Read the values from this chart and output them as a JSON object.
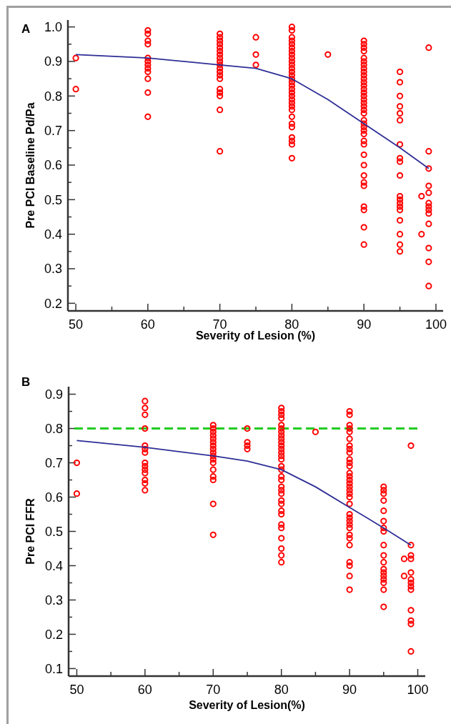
{
  "chart_data": [
    {
      "type": "scatter",
      "title": "A",
      "xlabel": "Severity of Lesion (%)",
      "ylabel": "Pre PCI Baseline Pd/Pa",
      "xlim": [
        48.9,
        101
      ],
      "ylim": [
        0.178,
        1.02
      ],
      "xticks": [
        50,
        {
          "value": 55,
          "label": null
        },
        60,
        {
          "value": 65,
          "label": null
        },
        70,
        {
          "value": 75,
          "label": null
        },
        80,
        {
          "value": 85,
          "label": null
        },
        90,
        {
          "value": 95,
          "label": null
        },
        100
      ],
      "yticks": [
        0.2,
        {
          "value": 0.25,
          "label": null
        },
        0.3,
        {
          "value": 0.35,
          "label": null
        },
        0.4,
        {
          "value": 0.45,
          "label": null
        },
        0.5,
        {
          "value": 0.55,
          "label": null
        },
        0.6,
        {
          "value": 0.65,
          "label": null
        },
        0.7,
        {
          "value": 0.75,
          "label": null
        },
        0.8,
        {
          "value": 0.85,
          "label": null
        },
        0.9,
        {
          "value": 0.95,
          "label": null
        },
        {
          "value": 1,
          "label": "1.0"
        }
      ],
      "grid": false,
      "series": [
        {
          "type": "scatter",
          "marker": "circle",
          "color": "#ff0000",
          "x": [
            50,
            50,
            60,
            60,
            60,
            60,
            60,
            60,
            60,
            60,
            60,
            60,
            60,
            60,
            70,
            70,
            70,
            70,
            70,
            70,
            70,
            70,
            70,
            70,
            70,
            70,
            70,
            70,
            70,
            70,
            70,
            70,
            70,
            75,
            75,
            75,
            80,
            80,
            80,
            80,
            80,
            80,
            80,
            80,
            80,
            80,
            80,
            80,
            80,
            80,
            80,
            80,
            80,
            80,
            80,
            80,
            80,
            80,
            80,
            80,
            80,
            80,
            80,
            80,
            80,
            80,
            80,
            85,
            90,
            90,
            90,
            90,
            90,
            90,
            90,
            90,
            90,
            90,
            90,
            90,
            90,
            90,
            90,
            90,
            90,
            90,
            90,
            90,
            90,
            90,
            90,
            90,
            90,
            90,
            90,
            90,
            90,
            90,
            90,
            90,
            90,
            90,
            90,
            90,
            90,
            95,
            95,
            95,
            95,
            95,
            95,
            95,
            95,
            95,
            95,
            95,
            95,
            95,
            95,
            95,
            95,
            95,
            95,
            95,
            98,
            98,
            99,
            99,
            99,
            99,
            99,
            99,
            99,
            99,
            99,
            99,
            99,
            99,
            99
          ],
          "values": [
            0.91,
            0.82,
            0.99,
            0.98,
            0.96,
            0.95,
            0.91,
            0.9,
            0.89,
            0.88,
            0.87,
            0.85,
            0.81,
            0.74,
            0.98,
            0.97,
            0.96,
            0.95,
            0.94,
            0.93,
            0.92,
            0.91,
            0.9,
            0.89,
            0.88,
            0.87,
            0.86,
            0.85,
            0.82,
            0.81,
            0.8,
            0.76,
            0.64,
            0.97,
            0.92,
            0.89,
            1.0,
            0.99,
            0.97,
            0.96,
            0.95,
            0.94,
            0.93,
            0.92,
            0.91,
            0.9,
            0.89,
            0.88,
            0.87,
            0.86,
            0.85,
            0.84,
            0.83,
            0.82,
            0.81,
            0.8,
            0.79,
            0.78,
            0.77,
            0.76,
            0.74,
            0.72,
            0.71,
            0.68,
            0.67,
            0.66,
            0.62,
            0.92,
            0.96,
            0.95,
            0.94,
            0.93,
            0.91,
            0.9,
            0.89,
            0.88,
            0.87,
            0.86,
            0.85,
            0.84,
            0.83,
            0.82,
            0.81,
            0.8,
            0.79,
            0.78,
            0.77,
            0.76,
            0.75,
            0.73,
            0.72,
            0.71,
            0.7,
            0.69,
            0.67,
            0.66,
            0.63,
            0.6,
            0.57,
            0.55,
            0.54,
            0.48,
            0.47,
            0.42,
            0.37,
            0.87,
            0.84,
            0.8,
            0.77,
            0.75,
            0.73,
            0.66,
            0.62,
            0.61,
            0.57,
            0.51,
            0.5,
            0.49,
            0.48,
            0.47,
            0.44,
            0.4,
            0.37,
            0.35,
            0.51,
            0.4,
            0.94,
            0.64,
            0.59,
            0.54,
            0.52,
            0.49,
            0.48,
            0.47,
            0.46,
            0.43,
            0.36,
            0.32,
            0.25
          ]
        },
        {
          "type": "line",
          "color": "#2e2e96",
          "line_style": "solid",
          "x": [
            50,
            60,
            70,
            75,
            80,
            85,
            90,
            95,
            99
          ],
          "values": [
            0.92,
            0.91,
            0.89,
            0.88,
            0.85,
            0.79,
            0.72,
            0.65,
            0.59
          ]
        }
      ]
    },
    {
      "type": "scatter",
      "title": "B",
      "xlabel": "Severity of Lesion(%)",
      "ylabel": "Pre PCI FFR",
      "xlim": [
        48.8,
        101.1
      ],
      "ylim": [
        0.078,
        0.922
      ],
      "xticks": [
        50,
        {
          "value": 55,
          "label": null
        },
        60,
        {
          "value": 65,
          "label": null
        },
        70,
        {
          "value": 75,
          "label": null
        },
        80,
        {
          "value": 85,
          "label": null
        },
        90,
        {
          "value": 95,
          "label": null
        },
        100
      ],
      "yticks": [
        0.1,
        {
          "value": 0.15,
          "label": null
        },
        0.2,
        {
          "value": 0.25,
          "label": null
        },
        0.3,
        {
          "value": 0.35,
          "label": null
        },
        0.4,
        {
          "value": 0.45,
          "label": null
        },
        0.5,
        {
          "value": 0.55,
          "label": null
        },
        0.6,
        {
          "value": 0.65,
          "label": null
        },
        0.7,
        {
          "value": 0.75,
          "label": null
        },
        0.8,
        {
          "value": 0.85,
          "label": null
        },
        0.9
      ],
      "grid": false,
      "ref_lines": [
        {
          "axis": "y",
          "value": 0.8,
          "label": null,
          "color": "#22cc22",
          "line_style": "dashed"
        }
      ],
      "series": [
        {
          "type": "scatter",
          "marker": "circle",
          "color": "#ff0000",
          "x": [
            50,
            50,
            60,
            60,
            60,
            60,
            60,
            60,
            60,
            60,
            60,
            60,
            60,
            60,
            60,
            60,
            70,
            70,
            70,
            70,
            70,
            70,
            70,
            70,
            70,
            70,
            70,
            70,
            70,
            70,
            70,
            70,
            70,
            75,
            75,
            75,
            75,
            80,
            80,
            80,
            80,
            80,
            80,
            80,
            80,
            80,
            80,
            80,
            80,
            80,
            80,
            80,
            80,
            80,
            80,
            80,
            80,
            80,
            80,
            80,
            80,
            80,
            80,
            80,
            80,
            80,
            80,
            80,
            80,
            85,
            90,
            90,
            90,
            90,
            90,
            90,
            90,
            90,
            90,
            90,
            90,
            90,
            90,
            90,
            90,
            90,
            90,
            90,
            90,
            90,
            90,
            90,
            90,
            90,
            90,
            90,
            90,
            90,
            90,
            90,
            90,
            90,
            90,
            95,
            95,
            95,
            95,
            95,
            95,
            95,
            95,
            95,
            95,
            95,
            95,
            95,
            95,
            95,
            95,
            95,
            95,
            98,
            98,
            99,
            99,
            99,
            99,
            99,
            99,
            99,
            99,
            99,
            99,
            99,
            99,
            99
          ],
          "values": [
            0.7,
            0.61,
            0.88,
            0.86,
            0.84,
            0.8,
            0.75,
            0.74,
            0.73,
            0.7,
            0.69,
            0.68,
            0.67,
            0.65,
            0.64,
            0.62,
            0.81,
            0.8,
            0.79,
            0.78,
            0.77,
            0.76,
            0.75,
            0.74,
            0.73,
            0.72,
            0.71,
            0.7,
            0.68,
            0.66,
            0.65,
            0.58,
            0.49,
            0.8,
            0.76,
            0.75,
            0.74,
            0.86,
            0.85,
            0.84,
            0.83,
            0.81,
            0.8,
            0.79,
            0.78,
            0.77,
            0.76,
            0.75,
            0.74,
            0.73,
            0.72,
            0.71,
            0.69,
            0.68,
            0.66,
            0.65,
            0.63,
            0.62,
            0.61,
            0.59,
            0.58,
            0.56,
            0.55,
            0.52,
            0.51,
            0.48,
            0.45,
            0.43,
            0.41,
            0.79,
            0.85,
            0.84,
            0.81,
            0.8,
            0.79,
            0.77,
            0.75,
            0.74,
            0.73,
            0.71,
            0.7,
            0.69,
            0.67,
            0.66,
            0.65,
            0.64,
            0.63,
            0.62,
            0.61,
            0.6,
            0.58,
            0.55,
            0.54,
            0.53,
            0.52,
            0.51,
            0.49,
            0.48,
            0.46,
            0.41,
            0.4,
            0.37,
            0.33,
            0.63,
            0.62,
            0.61,
            0.59,
            0.56,
            0.53,
            0.51,
            0.5,
            0.46,
            0.43,
            0.41,
            0.39,
            0.38,
            0.37,
            0.36,
            0.35,
            0.33,
            0.28,
            0.42,
            0.37,
            0.75,
            0.46,
            0.43,
            0.42,
            0.38,
            0.36,
            0.35,
            0.34,
            0.33,
            0.27,
            0.24,
            0.23,
            0.15
          ]
        },
        {
          "type": "line",
          "color": "#2e2e96",
          "line_style": "solid",
          "x": [
            50,
            60,
            70,
            75,
            80,
            85,
            90,
            95,
            99
          ],
          "values": [
            0.765,
            0.745,
            0.72,
            0.705,
            0.68,
            0.63,
            0.57,
            0.51,
            0.46
          ]
        }
      ]
    }
  ]
}
